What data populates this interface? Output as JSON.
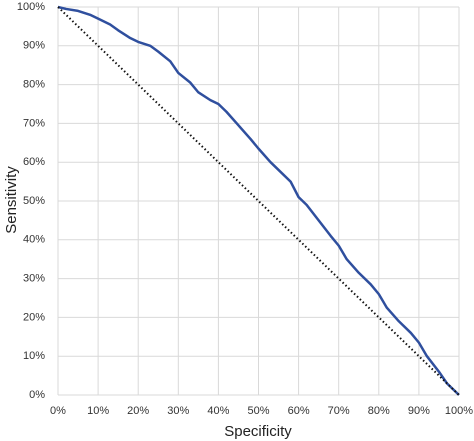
{
  "chart_data": {
    "type": "line",
    "x_label": "Specificity",
    "y_label": "Sensitivity",
    "xlim": [
      0,
      100
    ],
    "ylim": [
      0,
      100
    ],
    "xticks": [
      {
        "value": 0,
        "label": "0%"
      },
      {
        "value": 10,
        "label": "10%"
      },
      {
        "value": 20,
        "label": "20%"
      },
      {
        "value": 30,
        "label": "30%"
      },
      {
        "value": 40,
        "label": "40%"
      },
      {
        "value": 50,
        "label": "50%"
      },
      {
        "value": 60,
        "label": "60%"
      },
      {
        "value": 70,
        "label": "70%"
      },
      {
        "value": 80,
        "label": "80%"
      },
      {
        "value": 90,
        "label": "90%"
      },
      {
        "value": 100,
        "label": "100%"
      }
    ],
    "yticks": [
      {
        "value": 0,
        "label": "0%"
      },
      {
        "value": 10,
        "label": "10%"
      },
      {
        "value": 20,
        "label": "20%"
      },
      {
        "value": 30,
        "label": "30%"
      },
      {
        "value": 40,
        "label": "40%"
      },
      {
        "value": 50,
        "label": "50%"
      },
      {
        "value": 60,
        "label": "60%"
      },
      {
        "value": 70,
        "label": "70%"
      },
      {
        "value": 80,
        "label": "80%"
      },
      {
        "value": 90,
        "label": "90%"
      },
      {
        "value": 100,
        "label": "100%"
      }
    ],
    "grid": true,
    "series": [
      {
        "color": "#2f4f9e",
        "style": "solid",
        "x": [
          0,
          2,
          5,
          8,
          10,
          13,
          15,
          18,
          20,
          23,
          25,
          28,
          30,
          33,
          35,
          38,
          40,
          42,
          45,
          48,
          50,
          53,
          55,
          58,
          60,
          62,
          65,
          68,
          70,
          72,
          75,
          78,
          80,
          82,
          85,
          88,
          90,
          92,
          95,
          97,
          98,
          100
        ],
        "values": [
          100,
          99.5,
          99,
          98,
          97,
          95.5,
          94,
          92,
          91,
          90,
          88.5,
          86,
          83,
          80.5,
          78,
          76,
          75,
          73,
          69.5,
          66,
          63.5,
          60,
          58,
          55,
          51,
          49,
          45,
          41,
          38.5,
          35,
          31.5,
          28.5,
          26,
          22.5,
          19,
          16,
          13.5,
          10,
          6,
          3,
          2,
          0
        ]
      },
      {
        "color": "#111111",
        "style": "dotted",
        "x": [
          0,
          100
        ],
        "values": [
          100,
          0
        ]
      }
    ]
  }
}
